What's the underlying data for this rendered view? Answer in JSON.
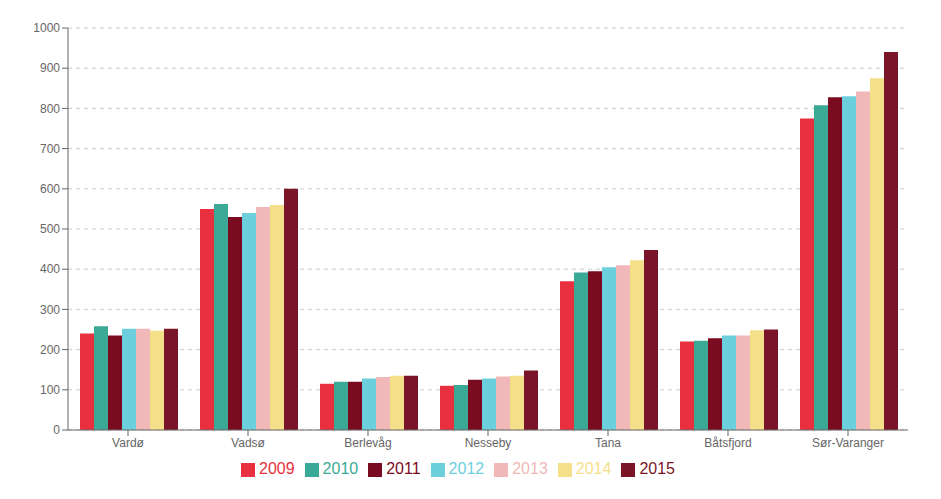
{
  "chart_data": {
    "type": "bar",
    "categories": [
      "Vardø",
      "Vadsø",
      "Berlevåg",
      "Nesseby",
      "Tana",
      "Båtsfjord",
      "Sør-Varanger"
    ],
    "series": [
      {
        "name": "2009",
        "color": "#e83040",
        "values": [
          240,
          550,
          115,
          110,
          370,
          220,
          775
        ]
      },
      {
        "name": "2010",
        "color": "#3aaa96",
        "values": [
          258,
          562,
          120,
          112,
          392,
          222,
          808
        ]
      },
      {
        "name": "2011",
        "color": "#7a0c22",
        "values": [
          235,
          530,
          120,
          125,
          395,
          228,
          828
        ]
      },
      {
        "name": "2012",
        "color": "#6dcfdc",
        "values": [
          252,
          540,
          128,
          128,
          405,
          235,
          830
        ]
      },
      {
        "name": "2013",
        "color": "#f0b8b8",
        "values": [
          252,
          555,
          132,
          133,
          410,
          235,
          842
        ]
      },
      {
        "name": "2014",
        "color": "#f5e08a",
        "values": [
          247,
          560,
          135,
          135,
          422,
          248,
          875
        ]
      },
      {
        "name": "2015",
        "color": "#7a1428",
        "values": [
          252,
          600,
          135,
          148,
          448,
          250,
          940
        ]
      }
    ],
    "ylim": [
      0,
      1000
    ],
    "yticks": [
      0,
      100,
      200,
      300,
      400,
      500,
      600,
      700,
      800,
      900,
      1000
    ],
    "grid": true,
    "legend": "bottom"
  }
}
